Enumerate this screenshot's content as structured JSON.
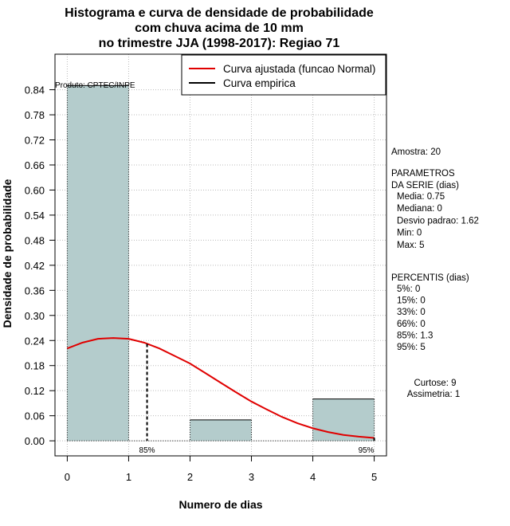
{
  "chart_data": {
    "type": "bar",
    "title_lines": [
      "Histograma e curva de densidade de probabilidade",
      "com chuva acima de 10 mm",
      "no trimestre JJA (1998-2017): Regiao 71"
    ],
    "xlabel": "Numero de dias",
    "ylabel": "Densidade de probabilidade",
    "xlim": [
      -0.2,
      5.2
    ],
    "ylim": [
      -0.036,
      0.925
    ],
    "x_ticks": [
      0,
      1,
      2,
      3,
      4,
      5
    ],
    "y_ticks": [
      0.0,
      0.06,
      0.12,
      0.18,
      0.24,
      0.3,
      0.36,
      0.42,
      0.48,
      0.54,
      0.6,
      0.66,
      0.72,
      0.78,
      0.84
    ],
    "y_tick_labels": [
      "0.00",
      "0.06",
      "0.12",
      "0.18",
      "0.24",
      "0.30",
      "0.36",
      "0.42",
      "0.48",
      "0.54",
      "0.60",
      "0.66",
      "0.72",
      "0.78",
      "0.84"
    ],
    "grid": true,
    "bars": [
      {
        "x0": 0,
        "x1": 1,
        "value": 0.85
      },
      {
        "x0": 2,
        "x1": 3,
        "value": 0.05
      },
      {
        "x0": 4,
        "x1": 5,
        "value": 0.1
      }
    ],
    "fitted_curve": {
      "name": "Curva ajustada (funcao Normal)",
      "color": "#e00000",
      "x": [
        0,
        0.25,
        0.5,
        0.75,
        1,
        1.25,
        1.5,
        1.75,
        2,
        2.25,
        2.5,
        2.75,
        3,
        3.25,
        3.5,
        3.75,
        4,
        4.25,
        4.5,
        4.75,
        5
      ],
      "y": [
        0.221,
        0.235,
        0.244,
        0.246,
        0.244,
        0.235,
        0.221,
        0.203,
        0.185,
        0.162,
        0.139,
        0.116,
        0.094,
        0.075,
        0.057,
        0.042,
        0.03,
        0.021,
        0.014,
        0.01,
        0.007
      ]
    },
    "empirical_curve": {
      "name": "Curva empirica",
      "color": "#000000"
    },
    "percentile_markers": [
      {
        "label": "85%",
        "x": 1.3,
        "y": 0.232
      },
      {
        "label": "95%",
        "x": 5.0,
        "y": 0.007
      }
    ],
    "bar_color": "#b4cccc",
    "legend_position": "top-right",
    "product_label": "Produto: CPTEC/INPE"
  },
  "stats": {
    "sample": "Amostra: 20",
    "params_header": [
      " PARAMETROS",
      "DA SERIE (dias)"
    ],
    "params": [
      "Media: 0.75",
      "Mediana: 0",
      "Desvio padrao: 1.62",
      "Min: 0",
      "Max: 5"
    ],
    "percentis_header": "PERCENTIS (dias)",
    "percentis": [
      "5%: 0",
      "15%: 0",
      "33%: 0",
      "66%: 0",
      "85%: 1.3",
      "95%: 5"
    ],
    "kurtosis": "Curtose: 9",
    "skewness": "Assimetria: 1"
  }
}
